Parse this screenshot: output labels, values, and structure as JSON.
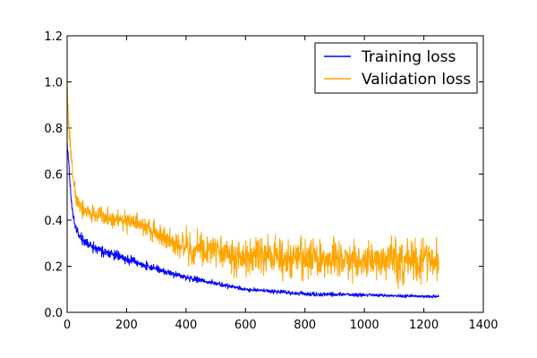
{
  "chart_data": {
    "type": "line",
    "title": "",
    "xlabel": "",
    "ylabel": "",
    "xlim": [
      0,
      1400
    ],
    "ylim": [
      0.0,
      1.2
    ],
    "xticks": [
      0,
      200,
      400,
      600,
      800,
      1000,
      1200,
      1400
    ],
    "yticks": [
      0.0,
      0.2,
      0.4,
      0.6,
      0.8,
      1.0,
      1.2
    ],
    "xtick_labels": [
      "0",
      "200",
      "400",
      "600",
      "800",
      "1000",
      "1200",
      "1400"
    ],
    "ytick_labels": [
      "0.0",
      "0.2",
      "0.4",
      "0.6",
      "0.8",
      "1.0",
      "1.2"
    ],
    "grid": false,
    "legend": {
      "position": "top-right",
      "entries": [
        "Training loss",
        "Validation loss"
      ]
    },
    "series": [
      {
        "name": "Training loss",
        "color": "#0000ff",
        "x": [
          0,
          5,
          10,
          15,
          20,
          25,
          30,
          40,
          50,
          60,
          80,
          100,
          150,
          200,
          250,
          300,
          350,
          400,
          450,
          500,
          550,
          600,
          700,
          800,
          900,
          1000,
          1100,
          1200,
          1250
        ],
        "values": [
          0.74,
          0.66,
          0.56,
          0.47,
          0.42,
          0.39,
          0.36,
          0.34,
          0.32,
          0.31,
          0.29,
          0.27,
          0.25,
          0.23,
          0.21,
          0.19,
          0.17,
          0.15,
          0.14,
          0.125,
          0.11,
          0.1,
          0.09,
          0.08,
          0.078,
          0.075,
          0.072,
          0.07,
          0.07
        ],
        "noise": [
          0.01,
          0.01,
          0.01,
          0.01,
          0.01,
          0.01,
          0.01,
          0.01,
          0.01,
          0.01,
          0.01,
          0.01,
          0.01,
          0.01,
          0.008,
          0.007,
          0.006,
          0.006,
          0.005,
          0.005,
          0.005,
          0.004,
          0.004,
          0.004,
          0.004,
          0.003,
          0.003,
          0.003,
          0.003
        ]
      },
      {
        "name": "Validation loss",
        "color": "#ffa500",
        "x": [
          0,
          5,
          10,
          15,
          20,
          25,
          30,
          40,
          50,
          60,
          80,
          100,
          150,
          200,
          250,
          300,
          350,
          400,
          450,
          500,
          550,
          600,
          700,
          800,
          900,
          1000,
          1100,
          1200,
          1250
        ],
        "values": [
          1.0,
          0.82,
          0.72,
          0.64,
          0.58,
          0.54,
          0.5,
          0.47,
          0.45,
          0.44,
          0.43,
          0.42,
          0.41,
          0.4,
          0.38,
          0.34,
          0.31,
          0.29,
          0.28,
          0.26,
          0.25,
          0.24,
          0.24,
          0.23,
          0.23,
          0.22,
          0.22,
          0.22,
          0.23
        ],
        "noise": [
          0.02,
          0.02,
          0.02,
          0.02,
          0.02,
          0.02,
          0.02,
          0.02,
          0.02,
          0.015,
          0.015,
          0.015,
          0.02,
          0.02,
          0.02,
          0.02,
          0.025,
          0.03,
          0.03,
          0.03,
          0.035,
          0.035,
          0.04,
          0.04,
          0.04,
          0.04,
          0.04,
          0.04,
          0.04
        ]
      }
    ]
  }
}
